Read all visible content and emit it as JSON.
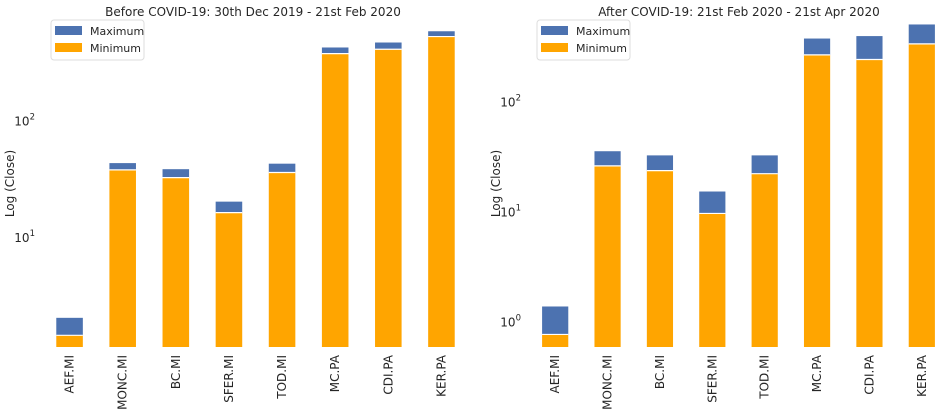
{
  "chart_data": [
    {
      "type": "bar",
      "stacked": true,
      "title": "Before COVID-19: 30th Dec 2019 - 21st Feb 2020",
      "ylabel": "Log (Close)",
      "yscale": "log",
      "ylim": [
        1.15,
        750
      ],
      "yticks": [
        {
          "value": 10,
          "base": "10",
          "exp": "1"
        },
        {
          "value": 100,
          "base": "10",
          "exp": "2"
        }
      ],
      "categories": [
        "AEF.MI",
        "MONC.MI",
        "BC.MI",
        "SFER.MI",
        "TOD.MI",
        "MC.PA",
        "CDI.PA",
        "KER.PA"
      ],
      "series": [
        {
          "name": "Minimum",
          "color": "#FFA500",
          "values": [
            1.45,
            38.5,
            33.0,
            16.5,
            36.5,
            385,
            420,
            540
          ]
        },
        {
          "name": "Maximum",
          "color": "#4C72B0",
          "values": [
            2.05,
            44.0,
            39.0,
            20.5,
            43.5,
            435,
            480,
            600
          ]
        }
      ],
      "legend": {
        "position": "top-left",
        "entries": [
          "Maximum",
          "Minimum"
        ]
      }
    },
    {
      "type": "bar",
      "stacked": true,
      "title": "After COVID-19: 21st Feb 2020 - 21st Apr 2020",
      "ylabel": "Log (Close)",
      "yscale": "log",
      "ylim": [
        0.6,
        560
      ],
      "yticks": [
        {
          "value": 1,
          "base": "10",
          "exp": "0"
        },
        {
          "value": 10,
          "base": "10",
          "exp": "1"
        },
        {
          "value": 100,
          "base": "10",
          "exp": "2"
        }
      ],
      "categories": [
        "AEF.MI",
        "MONC.MI",
        "BC.MI",
        "SFER.MI",
        "TOD.MI",
        "MC.PA",
        "CDI.PA",
        "KER.PA"
      ],
      "series": [
        {
          "name": "Minimum",
          "color": "#FFA500",
          "values": [
            0.78,
            26.5,
            24.0,
            9.8,
            22.5,
            270,
            245,
            340
          ]
        },
        {
          "name": "Maximum",
          "color": "#4C72B0",
          "values": [
            1.4,
            36.0,
            33.0,
            15.5,
            33.0,
            380,
            400,
            510
          ]
        }
      ],
      "legend": {
        "position": "top-left",
        "entries": [
          "Maximum",
          "Minimum"
        ]
      }
    }
  ]
}
